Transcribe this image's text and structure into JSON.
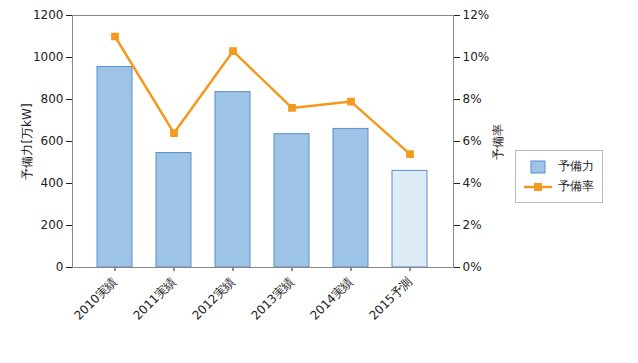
{
  "chart_data": {
    "type": "bar",
    "categories": [
      "2010実績",
      "2011実績",
      "2012実績",
      "2013実績",
      "2014実績",
      "2015予測"
    ],
    "series": [
      {
        "name": "予備力",
        "type": "bar",
        "color": "#9dc3e6",
        "colors": [
          "#9dc3e6",
          "#9dc3e6",
          "#9dc3e6",
          "#9dc3e6",
          "#9dc3e6",
          "#ddebf7"
        ],
        "values": [
          955,
          545,
          835,
          635,
          660,
          460
        ]
      },
      {
        "name": "予備率",
        "type": "line",
        "color": "#f39a1e",
        "marker": "square",
        "axis": "y2",
        "values": [
          11.0,
          6.4,
          10.3,
          7.6,
          7.9,
          5.4
        ]
      }
    ],
    "ylabel": "予備力[万kW]",
    "y2label": "予備率",
    "ylim": [
      0,
      1200
    ],
    "yticks": [
      0,
      200,
      400,
      600,
      800,
      1000,
      1200
    ],
    "y2lim": [
      0,
      12
    ],
    "y2ticks": [
      {
        "value": 0,
        "label": "0%"
      },
      {
        "value": 2,
        "label": "2%"
      },
      {
        "value": 4,
        "label": "4%"
      },
      {
        "value": 6,
        "label": "6%"
      },
      {
        "value": 8,
        "label": "8%"
      },
      {
        "value": 10,
        "label": "10%"
      },
      {
        "value": 12,
        "label": "12%"
      }
    ],
    "legend": "right"
  }
}
